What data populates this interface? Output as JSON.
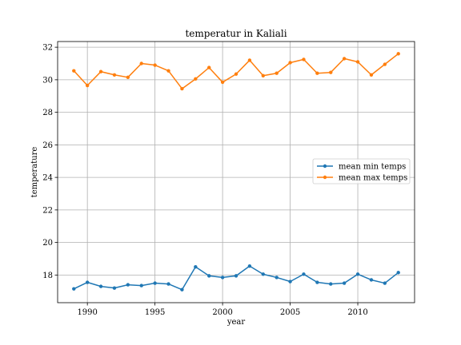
{
  "chart_data": {
    "type": "line",
    "title": "temperatur in Kaliali",
    "xlabel": "year",
    "ylabel": "temperature",
    "xlim": [
      1987.8,
      2014.2
    ],
    "ylim": [
      16.3,
      32.35
    ],
    "xticks": [
      1990,
      1995,
      2000,
      2005,
      2010
    ],
    "yticks": [
      18,
      20,
      22,
      24,
      26,
      28,
      30,
      32
    ],
    "grid": true,
    "legend_position": "center-right",
    "x": [
      1989,
      1990,
      1991,
      1992,
      1993,
      1994,
      1995,
      1996,
      1997,
      1998,
      1999,
      2000,
      2001,
      2002,
      2003,
      2004,
      2005,
      2006,
      2007,
      2008,
      2009,
      2010,
      2011,
      2012,
      2013
    ],
    "series": [
      {
        "name": "mean min temps",
        "color": "#1f77b4",
        "marker": "dot",
        "values": [
          17.15,
          17.55,
          17.3,
          17.2,
          17.4,
          17.35,
          17.5,
          17.45,
          17.1,
          18.5,
          17.95,
          17.85,
          17.95,
          18.55,
          18.05,
          17.85,
          17.6,
          18.05,
          17.55,
          17.45,
          17.5,
          18.05,
          17.7,
          17.5,
          18.15
        ]
      },
      {
        "name": "mean max temps",
        "color": "#ff7f0e",
        "marker": "dot",
        "values": [
          30.55,
          29.65,
          30.5,
          30.3,
          30.15,
          31.0,
          30.9,
          30.55,
          29.45,
          30.05,
          30.75,
          29.85,
          30.35,
          31.2,
          30.25,
          30.4,
          31.05,
          31.25,
          30.4,
          30.45,
          31.3,
          31.1,
          30.3,
          30.95,
          31.6
        ]
      }
    ]
  }
}
